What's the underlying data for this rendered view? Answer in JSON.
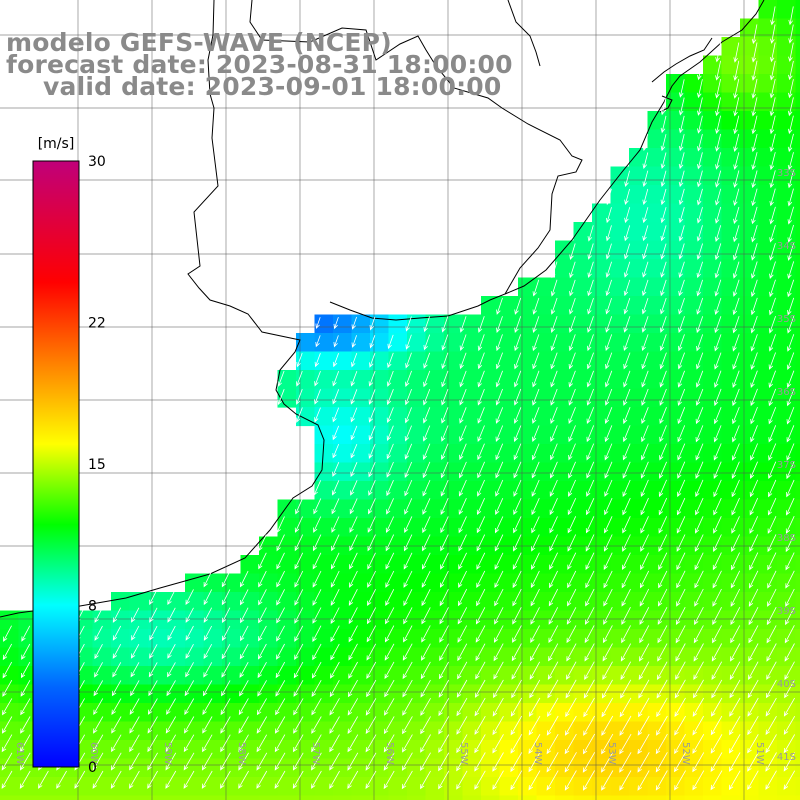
{
  "header": {
    "model_line": "modelo GEFS-WAVE (NCEP)",
    "forecast_line": "forecast date: 2023-08-31 18:00:00",
    "valid_line": "valid date: 2023-09-01 18:00:00"
  },
  "colorbar": {
    "unit": "[m/s]",
    "min": 0,
    "max": 30,
    "tick_labels": [
      "30",
      "22",
      "15",
      "8",
      "0"
    ],
    "tick_values": [
      30,
      22,
      15,
      8,
      0
    ],
    "stops": [
      {
        "value": 0,
        "color": "#0000ff"
      },
      {
        "value": 4,
        "color": "#0066ff"
      },
      {
        "value": 8,
        "color": "#00ffff"
      },
      {
        "value": 12,
        "color": "#00ff00"
      },
      {
        "value": 16,
        "color": "#ffff00"
      },
      {
        "value": 20,
        "color": "#ff8000"
      },
      {
        "value": 24,
        "color": "#ff0000"
      },
      {
        "value": 30,
        "color": "#c0007a"
      }
    ]
  },
  "map": {
    "field": "wind speed",
    "lat_labels": [
      "33S",
      "34S",
      "35S",
      "36S",
      "37S",
      "38S",
      "39S",
      "40S",
      "41S"
    ],
    "lon_labels": [
      "61W",
      "60W",
      "59W",
      "58W",
      "57W",
      "56W",
      "55W",
      "54W",
      "53W",
      "52W",
      "51W"
    ],
    "wind_arrow_color": "#ffffff",
    "gridline_color": "#555555",
    "coastline_color": "#000000"
  }
}
